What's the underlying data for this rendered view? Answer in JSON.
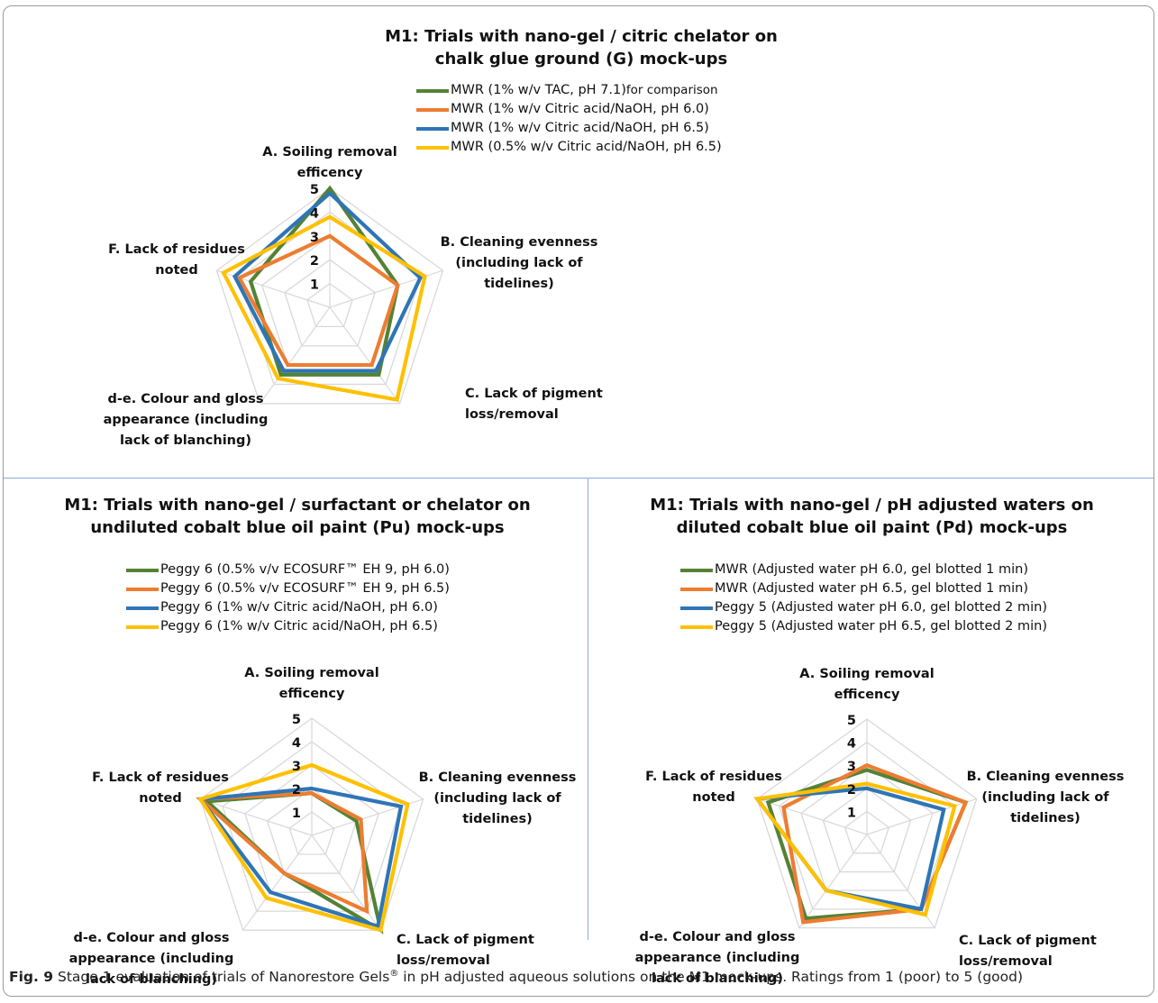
{
  "chart_data": [
    {
      "type": "radar",
      "title_lines": [
        "M1: Trials with nano-gel / citric chelator on",
        "chalk glue ground (G) mock-ups"
      ],
      "axes": [
        [
          "A. Soiling removal",
          "efficency"
        ],
        [
          "B. Cleaning evenness",
          "(including lack of",
          "tidelines)"
        ],
        [
          "C. Lack of pigment",
          "loss/removal"
        ],
        [
          "d-e. Colour and gloss",
          "appearance (including",
          "lack of blanching)"
        ],
        [
          "F. Lack of residues",
          "noted"
        ]
      ],
      "range": [
        0,
        5
      ],
      "ticks": [
        "1",
        "2",
        "3",
        "4",
        "5"
      ],
      "legend_position": "top",
      "series": [
        {
          "name": "MWR (1% w/v TAC, pH 7.1)",
          "name_suffix": " for comparison",
          "color": "#548235",
          "values": [
            5.0,
            3.0,
            3.5,
            3.5,
            3.5
          ]
        },
        {
          "name": "MWR (1% w/v Citric acid/NaOH, pH 6.0)",
          "color": "#ed7d31",
          "values": [
            3.0,
            3.0,
            3.0,
            3.0,
            4.0
          ]
        },
        {
          "name": "MWR (1% w/v Citric acid/NaOH, pH 6.5)",
          "color": "#2e75b6",
          "values": [
            4.8,
            4.0,
            3.3,
            3.3,
            4.2
          ]
        },
        {
          "name": "MWR (0.5% w/v Citric acid/NaOH, pH 6.5)",
          "color": "#ffc000",
          "values": [
            3.8,
            4.2,
            4.8,
            3.7,
            4.7
          ]
        }
      ]
    },
    {
      "type": "radar",
      "title_lines": [
        "M1: Trials with nano-gel / surfactant or chelator on",
        "undiluted cobalt blue oil paint (Pu) mock-ups"
      ],
      "axes": [
        [
          "A. Soiling removal",
          "efficency"
        ],
        [
          "B. Cleaning evenness",
          "(including lack of",
          "tidelines)"
        ],
        [
          "C. Lack of pigment",
          "loss/removal"
        ],
        [
          "d-e. Colour and gloss",
          "appearance (including",
          "lack of blanching)"
        ],
        [
          "F. Lack of residues",
          "noted"
        ]
      ],
      "range": [
        0,
        5
      ],
      "ticks": [
        "1",
        "2",
        "3",
        "4",
        "5"
      ],
      "legend_position": "top",
      "series": [
        {
          "name": "Peggy 6 (0.5% v/v ECOSURF™ EH 9, pH 6.0)",
          "color": "#548235",
          "values": [
            1.8,
            2.0,
            5.0,
            2.0,
            4.7
          ]
        },
        {
          "name": "Peggy 6 (0.5% v/v ECOSURF™ EH 9, pH 6.5)",
          "color": "#ed7d31",
          "values": [
            1.8,
            2.2,
            4.0,
            2.0,
            5.0
          ]
        },
        {
          "name": "Peggy 6 (1% w/v Citric acid/NaOH, pH 6.0)",
          "color": "#2e75b6",
          "values": [
            2.0,
            4.0,
            4.8,
            3.0,
            5.0
          ]
        },
        {
          "name": "Peggy 6 (1% w/v Citric acid/NaOH, pH 6.5)",
          "color": "#ffc000",
          "values": [
            3.0,
            4.3,
            5.0,
            3.3,
            5.0
          ]
        }
      ]
    },
    {
      "type": "radar",
      "title_lines": [
        "M1: Trials with nano-gel / pH adjusted waters on",
        "diluted cobalt blue oil paint (Pd) mock-ups"
      ],
      "axes": [
        [
          "A. Soiling removal",
          "efficency"
        ],
        [
          "B. Cleaning evenness",
          "(including lack of",
          "tidelines)"
        ],
        [
          "C. Lack of pigment",
          "loss/removal"
        ],
        [
          "d-e. Colour and gloss",
          "appearance (including",
          "lack of blanching)"
        ],
        [
          "F. Lack of residues",
          "noted"
        ]
      ],
      "range": [
        0,
        5
      ],
      "ticks": [
        "1",
        "2",
        "3",
        "4",
        "5"
      ],
      "legend_position": "top",
      "series": [
        {
          "name": "MWR (Adjusted water pH 6.0, gel blotted 1 min)",
          "color": "#548235",
          "values": [
            2.8,
            4.5,
            4.0,
            4.5,
            4.5
          ]
        },
        {
          "name": "MWR (Adjusted water pH 6.5, gel blotted 1 min)",
          "color": "#ed7d31",
          "values": [
            3.0,
            4.5,
            4.0,
            4.7,
            3.8
          ]
        },
        {
          "name": "Peggy 5 (Adjusted water pH 6.0, gel blotted 2 min)",
          "color": "#2e75b6",
          "values": [
            2.0,
            3.5,
            4.0,
            3.0,
            5.0
          ]
        },
        {
          "name": "Peggy 5 (Adjusted water pH 6.5, gel blotted 2 min)",
          "color": "#ffc000",
          "values": [
            2.2,
            4.0,
            4.3,
            3.0,
            5.0
          ]
        }
      ]
    }
  ],
  "caption": {
    "label": "Fig. 9",
    "text_main": "Stage 1 evaluation of trials of Nanorestore Gels",
    "superscript": "®",
    "text_rest": " in pH adjusted aqueous solutions on the M1 mock-ups. Ratings from 1 (poor) to 5 (good)"
  }
}
